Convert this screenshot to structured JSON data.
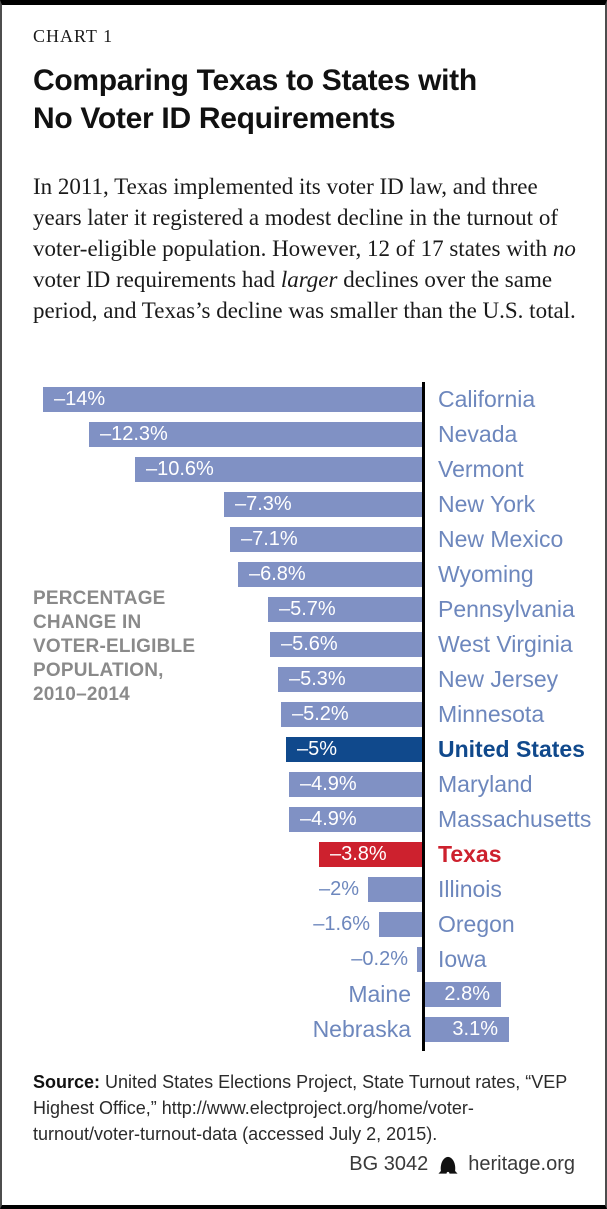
{
  "page": {
    "kicker": "CHART 1",
    "title": {
      "line1": "Comparing Texas to States with",
      "line2": "No Voter ID Requirements"
    },
    "intro_segments": [
      {
        "text": "In 2011, Texas implemented its voter ID law, and three years later it registered a modest decline in the turnout of voter-eligible population. However, 12 of 17 states with ",
        "italic": false
      },
      {
        "text": "no",
        "italic": true
      },
      {
        "text": " voter ID requirements had ",
        "italic": false
      },
      {
        "text": "larger",
        "italic": true
      },
      {
        "text": " declines over the same period, and Texas’s decline was smaller than the U.S. total.",
        "italic": false
      }
    ]
  },
  "chart_data": {
    "type": "bar",
    "orientation": "horizontal",
    "title": "Percentage change in voter-eligible population, 2010–2014",
    "axis_label_lines": [
      "PERCENTAGE",
      "CHANGE IN",
      "VOTER-ELIGIBLE",
      "POPULATION,",
      "2010–2014"
    ],
    "xlim": [
      -14,
      3.1
    ],
    "grid": false,
    "legend": "none",
    "categories": [
      "California",
      "Nevada",
      "Vermont",
      "New York",
      "New Mexico",
      "Wyoming",
      "Pennsylvania",
      "West Virginia",
      "New Jersey",
      "Minnesota",
      "United States",
      "Maryland",
      "Massachusetts",
      "Texas",
      "Illinois",
      "Oregon",
      "Iowa",
      "Maine",
      "Nebraska"
    ],
    "values": [
      -14,
      -12.3,
      -10.6,
      -7.3,
      -7.1,
      -6.8,
      -5.7,
      -5.6,
      -5.3,
      -5.2,
      -5,
      -4.9,
      -4.9,
      -3.8,
      -2,
      -1.6,
      -0.2,
      2.8,
      3.1
    ],
    "items": [
      {
        "label": "California",
        "value": -14,
        "value_label": "–14%",
        "style": "default"
      },
      {
        "label": "Nevada",
        "value": -12.3,
        "value_label": "–12.3%",
        "style": "default"
      },
      {
        "label": "Vermont",
        "value": -10.6,
        "value_label": "–10.6%",
        "style": "default"
      },
      {
        "label": "New York",
        "value": -7.3,
        "value_label": "–7.3%",
        "style": "default"
      },
      {
        "label": "New Mexico",
        "value": -7.1,
        "value_label": "–7.1%",
        "style": "default"
      },
      {
        "label": "Wyoming",
        "value": -6.8,
        "value_label": "–6.8%",
        "style": "default"
      },
      {
        "label": "Pennsylvania",
        "value": -5.7,
        "value_label": "–5.7%",
        "style": "default"
      },
      {
        "label": "West Virginia",
        "value": -5.6,
        "value_label": "–5.6%",
        "style": "default"
      },
      {
        "label": "New Jersey",
        "value": -5.3,
        "value_label": "–5.3%",
        "style": "default"
      },
      {
        "label": "Minnesota",
        "value": -5.2,
        "value_label": "–5.2%",
        "style": "default"
      },
      {
        "label": "United States",
        "value": -5,
        "value_label": "–5%",
        "style": "us"
      },
      {
        "label": "Maryland",
        "value": -4.9,
        "value_label": "–4.9%",
        "style": "default"
      },
      {
        "label": "Massachusetts",
        "value": -4.9,
        "value_label": "–4.9%",
        "style": "default"
      },
      {
        "label": "Texas",
        "value": -3.8,
        "value_label": "–3.8%",
        "style": "texas"
      },
      {
        "label": "Illinois",
        "value": -2,
        "value_label": "–2%",
        "style": "default"
      },
      {
        "label": "Oregon",
        "value": -1.6,
        "value_label": "–1.6%",
        "style": "default"
      },
      {
        "label": "Iowa",
        "value": -0.2,
        "value_label": "–0.2%",
        "style": "default"
      },
      {
        "label": "Maine",
        "value": 2.8,
        "value_label": "2.8%",
        "style": "default"
      },
      {
        "label": "Nebraska",
        "value": 3.1,
        "value_label": "3.1%",
        "style": "default"
      }
    ],
    "colors": {
      "bar_default": "#8091c4",
      "bar_us": "#10498c",
      "bar_texas": "#cd212e",
      "label_default": "#6d87bd",
      "label_us": "#10498c",
      "label_texas": "#cd212e",
      "axis": "#000000",
      "axis_label_gray": "#8a8a8a"
    }
  },
  "footer": {
    "source_label": "Source:",
    "source_text": " United States Elections Project, State Turnout rates, “VEP Highest Office,”  http://www.electproject.org/home/voter-turnout/voter-turnout-data (accessed July 2, 2015).",
    "doc_id": "BG 3042",
    "site": "heritage.org"
  }
}
